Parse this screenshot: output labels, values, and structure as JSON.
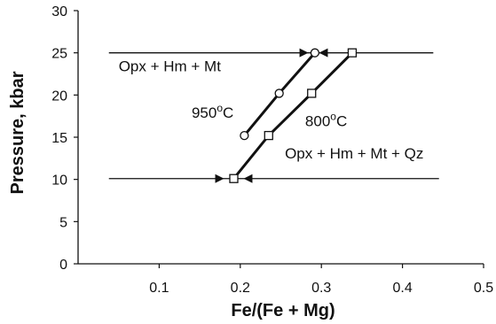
{
  "chart_data": {
    "type": "scatter",
    "xlabel": "Fe/(Fe + Mg)",
    "ylabel": "Pressure, kbar",
    "xlim": [
      0,
      0.5
    ],
    "ylim": [
      0,
      30
    ],
    "x_ticks": [
      "0.1",
      "0.2",
      "0.3",
      "0.4",
      "0.5"
    ],
    "y_ticks": [
      "0",
      "5",
      "10",
      "15",
      "20",
      "25",
      "30"
    ],
    "grid": false,
    "series": [
      {
        "label": "950°C",
        "marker": "circle",
        "points": [
          [
            0.205,
            15.2
          ],
          [
            0.248,
            20.2
          ],
          [
            0.292,
            25.0
          ]
        ]
      },
      {
        "label": "800°C",
        "marker": "square",
        "points": [
          [
            0.192,
            10.1
          ],
          [
            0.235,
            15.2
          ],
          [
            0.288,
            20.2
          ],
          [
            0.338,
            25.0
          ]
        ]
      }
    ],
    "tie_lines": [
      {
        "y": 25.0,
        "x_start": 0.038,
        "x_end": 0.438,
        "arrow_points": [
          0.284,
          0.297
        ]
      },
      {
        "y": 10.1,
        "x_start": 0.038,
        "x_end": 0.445,
        "arrow_points": [
          0.18,
          0.204
        ]
      }
    ],
    "annotations": [
      {
        "text": "Opx + Hm + Mt",
        "x": 0.05,
        "y": 22.8
      },
      {
        "text": "950",
        "sup": "o",
        "unit": "C",
        "x": 0.14,
        "y": 17.3
      },
      {
        "text": "800",
        "sup": "o",
        "unit": "C",
        "x": 0.28,
        "y": 16.3
      },
      {
        "text": "Opx + Hm + Mt + Qz",
        "x": 0.255,
        "y": 12.5
      }
    ]
  }
}
